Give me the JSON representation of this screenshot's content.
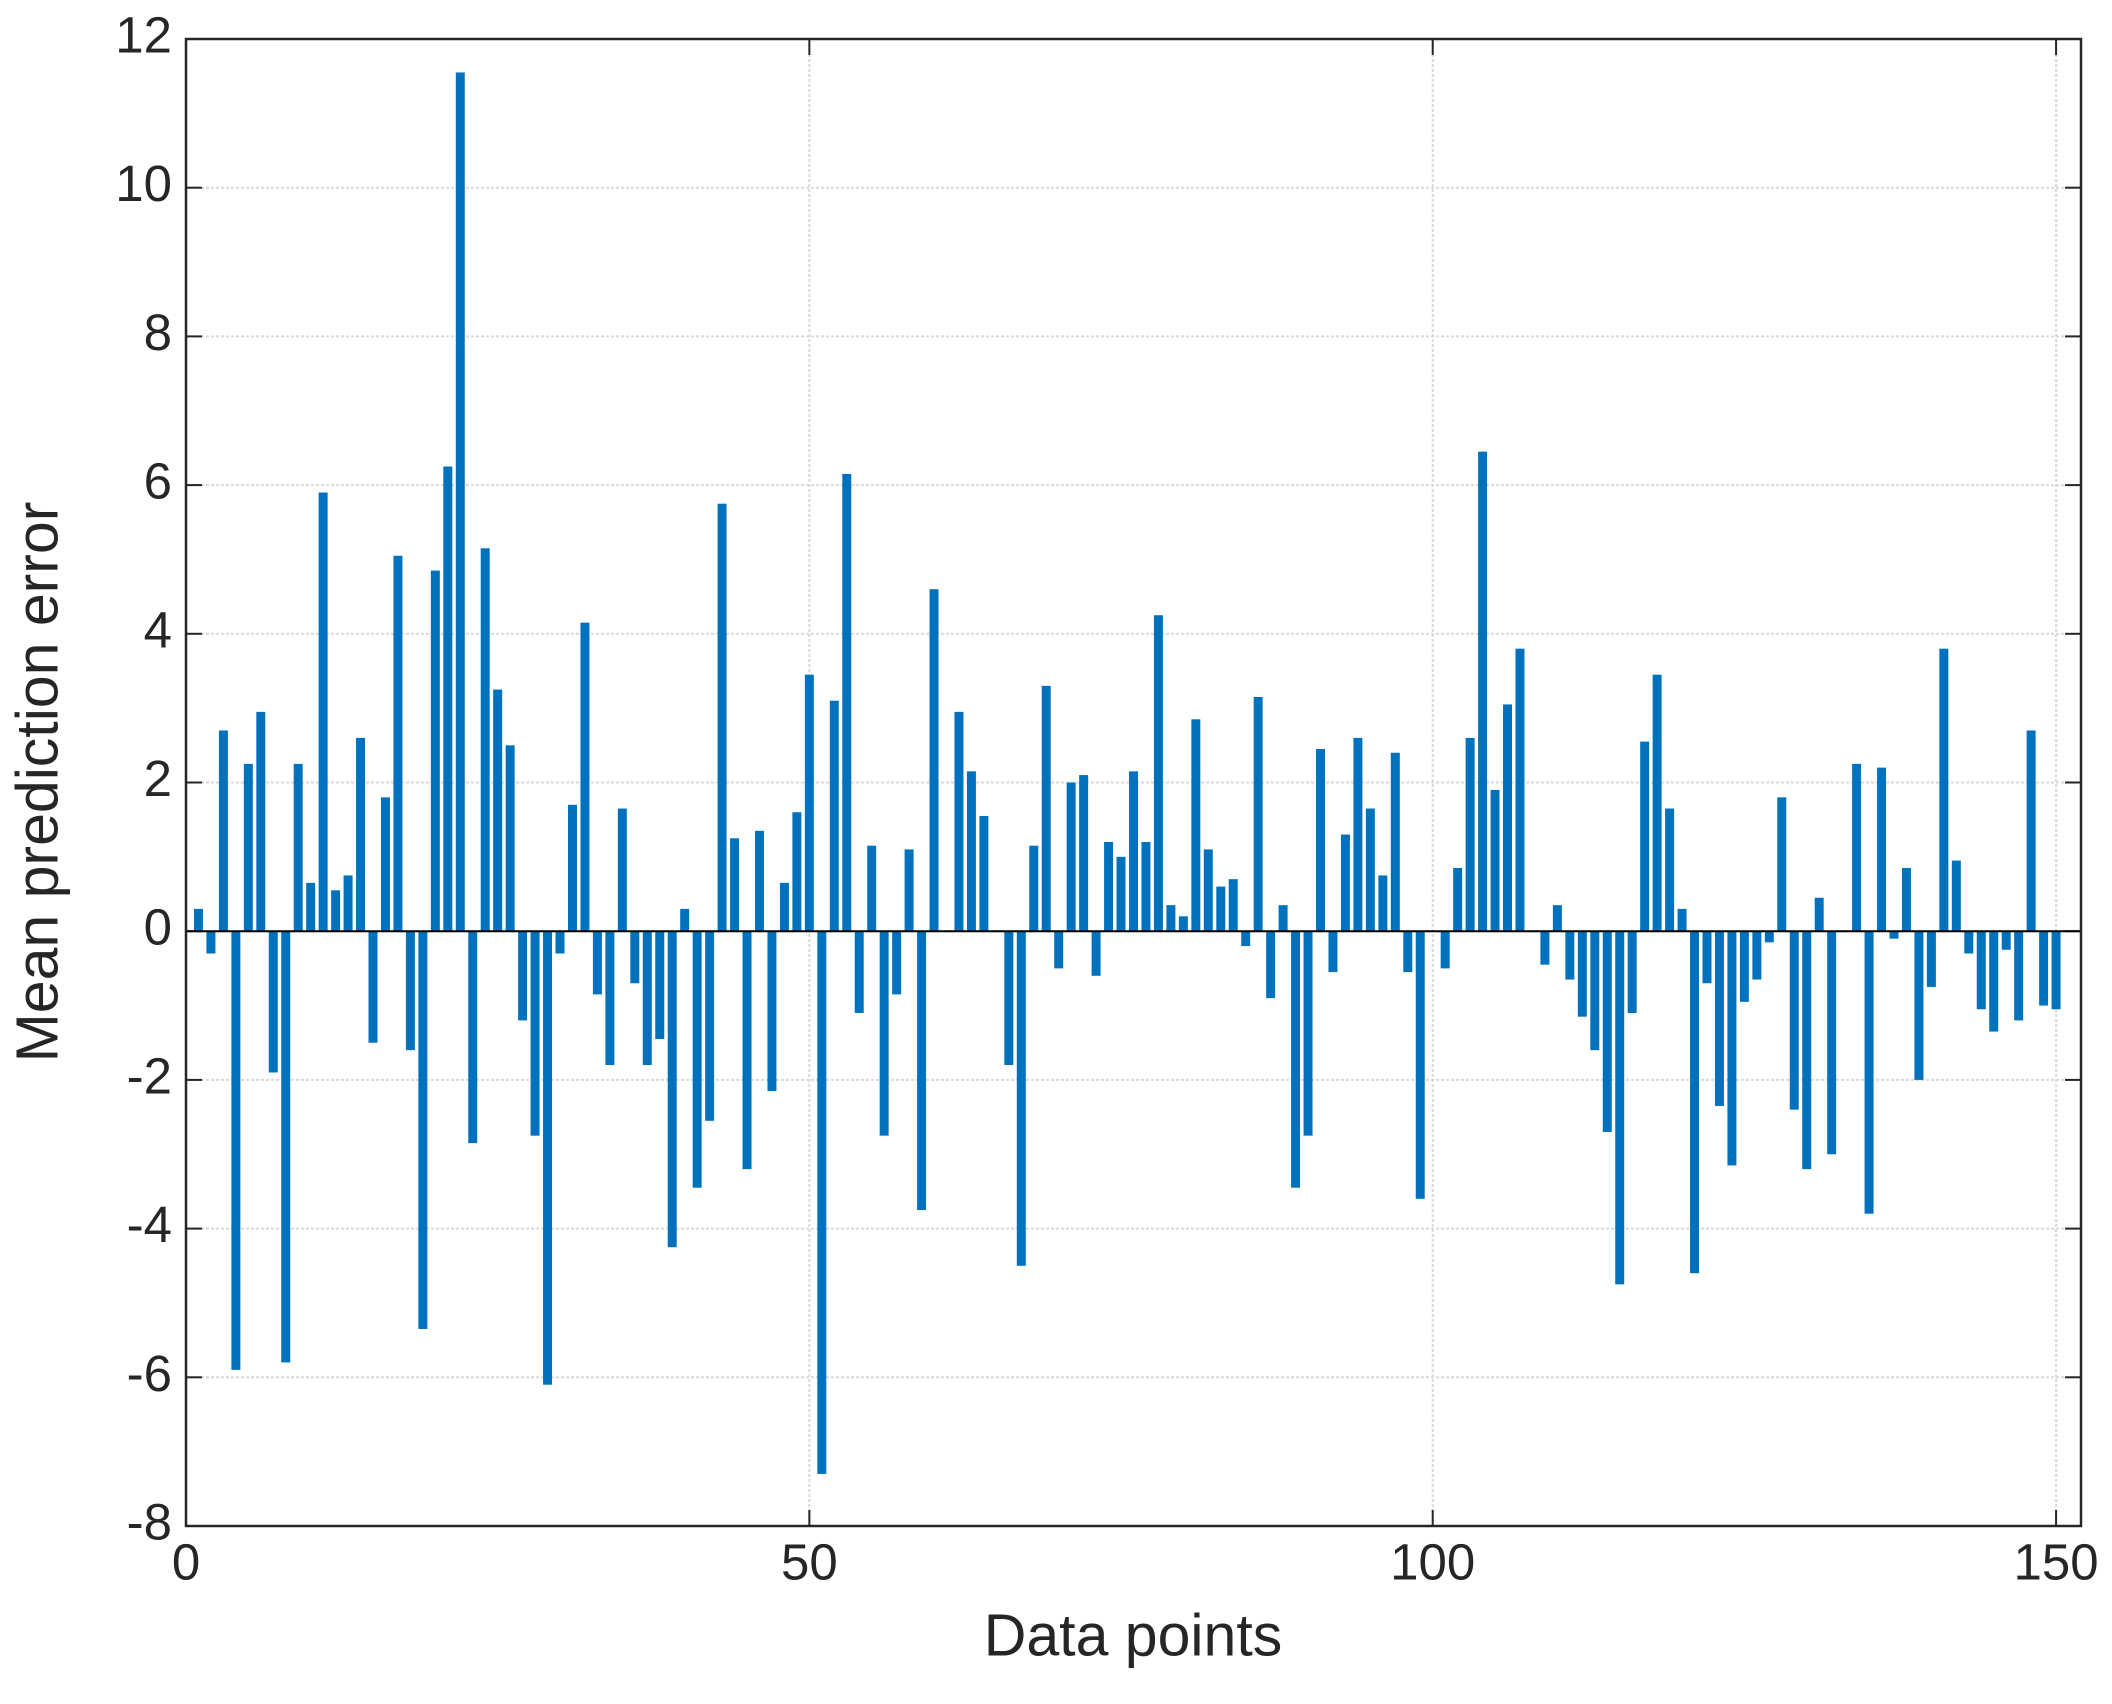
{
  "chart_data": {
    "type": "bar",
    "x_label": "Data points",
    "y_label": "Mean prediction error",
    "x": [
      1,
      2,
      3,
      4,
      5,
      6,
      7,
      8,
      9,
      10,
      11,
      12,
      13,
      14,
      15,
      16,
      17,
      18,
      19,
      20,
      21,
      22,
      23,
      24,
      25,
      26,
      27,
      28,
      29,
      30,
      31,
      32,
      33,
      34,
      35,
      36,
      37,
      38,
      39,
      40,
      41,
      42,
      43,
      44,
      45,
      46,
      47,
      48,
      49,
      50,
      51,
      52,
      53,
      54,
      55,
      56,
      57,
      58,
      59,
      60,
      61,
      62,
      63,
      64,
      65,
      66,
      67,
      68,
      69,
      70,
      71,
      72,
      73,
      74,
      75,
      76,
      77,
      78,
      79,
      80,
      81,
      82,
      83,
      84,
      85,
      86,
      87,
      88,
      89,
      90,
      91,
      92,
      93,
      94,
      95,
      96,
      97,
      98,
      99,
      100,
      101,
      102,
      103,
      104,
      105,
      106,
      107,
      108,
      109,
      110,
      111,
      112,
      113,
      114,
      115,
      116,
      117,
      118,
      119,
      120,
      121,
      122,
      123,
      124,
      125,
      126,
      127,
      128,
      129,
      130,
      131,
      132,
      133,
      134,
      135,
      136,
      137,
      138,
      139,
      140,
      141,
      142,
      143,
      144,
      145,
      146,
      147,
      148,
      149,
      150
    ],
    "values": [
      0.3,
      -0.3,
      2.7,
      -5.9,
      2.25,
      2.95,
      -1.9,
      -5.8,
      2.25,
      0.65,
      5.9,
      0.55,
      0.75,
      2.6,
      -1.5,
      1.8,
      5.05,
      -1.6,
      -5.35,
      4.85,
      6.25,
      11.55,
      -2.85,
      5.15,
      3.25,
      2.5,
      -1.2,
      -2.75,
      -6.1,
      -0.3,
      1.7,
      4.15,
      -0.85,
      -1.8,
      1.65,
      -0.7,
      -1.8,
      -1.45,
      -4.25,
      0.3,
      -3.45,
      -2.55,
      5.75,
      1.25,
      -3.2,
      1.35,
      -2.15,
      0.65,
      1.6,
      3.45,
      -7.3,
      3.1,
      6.15,
      -1.1,
      1.15,
      -2.75,
      -0.85,
      1.1,
      -3.75,
      4.6,
      0,
      2.95,
      2.15,
      1.55,
      0,
      -1.8,
      -4.5,
      1.15,
      3.3,
      -0.5,
      2.0,
      2.1,
      -0.6,
      1.2,
      1.0,
      2.15,
      1.2,
      4.25,
      0.35,
      0.2,
      2.85,
      1.1,
      0.6,
      0.7,
      -0.2,
      3.15,
      -0.9,
      0.35,
      -3.45,
      -2.75,
      2.45,
      -0.55,
      1.3,
      2.6,
      1.65,
      0.75,
      2.4,
      -0.55,
      -3.6,
      0,
      -0.5,
      0.85,
      2.6,
      6.45,
      1.9,
      3.05,
      3.8,
      0,
      -0.45,
      0.35,
      -0.65,
      -1.15,
      -1.6,
      -2.7,
      -4.75,
      -1.1,
      2.55,
      3.45,
      1.65,
      0.3,
      -4.6,
      -0.7,
      -2.35,
      -3.15,
      -0.95,
      -0.65,
      -0.15,
      1.8,
      -2.4,
      -3.2,
      0.45,
      -3.0,
      0,
      2.25,
      -3.8,
      2.2,
      -0.1,
      0.85,
      -2.0,
      -0.75,
      3.8,
      0.95,
      -0.3,
      -1.05,
      -1.35,
      -0.25,
      -1.2,
      2.7,
      -1.0,
      -1.05
    ],
    "color": "#0072bd",
    "xlim": [
      0,
      152
    ],
    "xticks": [
      0,
      50,
      100,
      150
    ],
    "ylim": [
      -8,
      12
    ],
    "yticks": [
      -8,
      -6,
      -4,
      -2,
      0,
      2,
      4,
      6,
      8,
      10,
      12
    ],
    "grid": true
  }
}
